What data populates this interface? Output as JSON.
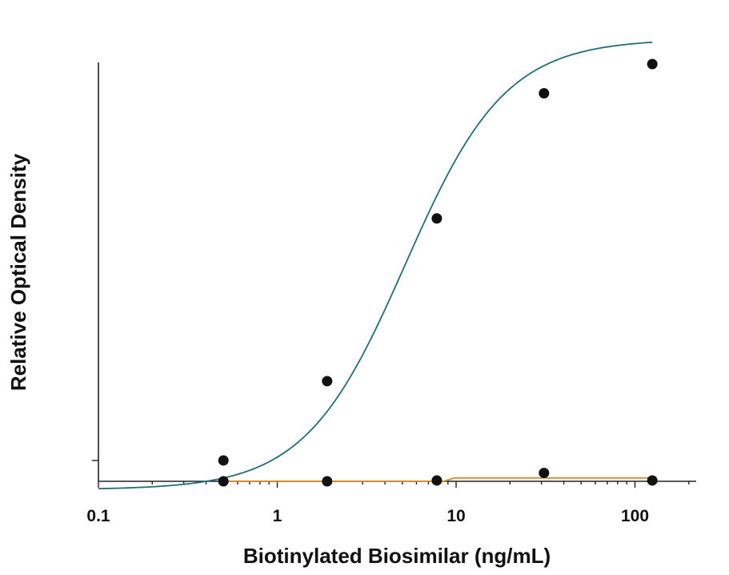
{
  "chart_data": {
    "type": "scatter",
    "xlabel": "Biotinylated Biosimilar (ng/mL)",
    "ylabel": "Relative Optical Density",
    "x_scale": "log",
    "xlim": [
      0.1,
      200
    ],
    "x_ticks": [
      {
        "value": 0.1,
        "label": "0.1"
      },
      {
        "value": 1,
        "label": "1"
      },
      {
        "value": 10,
        "label": "10"
      },
      {
        "value": 100,
        "label": "100"
      }
    ],
    "y_tick_labels_shown": false,
    "grid": false,
    "legend": "none",
    "series": [
      {
        "color": "#1f6f78",
        "marker_color": "#111111",
        "points": [
          {
            "x": 0.5,
            "y": 0.05
          },
          {
            "x": 1.9,
            "y": 0.24
          },
          {
            "x": 7.8,
            "y": 0.63
          },
          {
            "x": 31,
            "y": 0.93
          },
          {
            "x": 125,
            "y": 1.0
          }
        ],
        "fit": "4PL"
      },
      {
        "color": "#d98c2b",
        "marker_color": "#111111",
        "points": [
          {
            "x": 0.5,
            "y": 0.0
          },
          {
            "x": 1.9,
            "y": 0.0
          },
          {
            "x": 7.8,
            "y": 0.002
          },
          {
            "x": 31,
            "y": 0.02
          },
          {
            "x": 125,
            "y": 0.002
          }
        ],
        "fit": "flat"
      }
    ]
  }
}
